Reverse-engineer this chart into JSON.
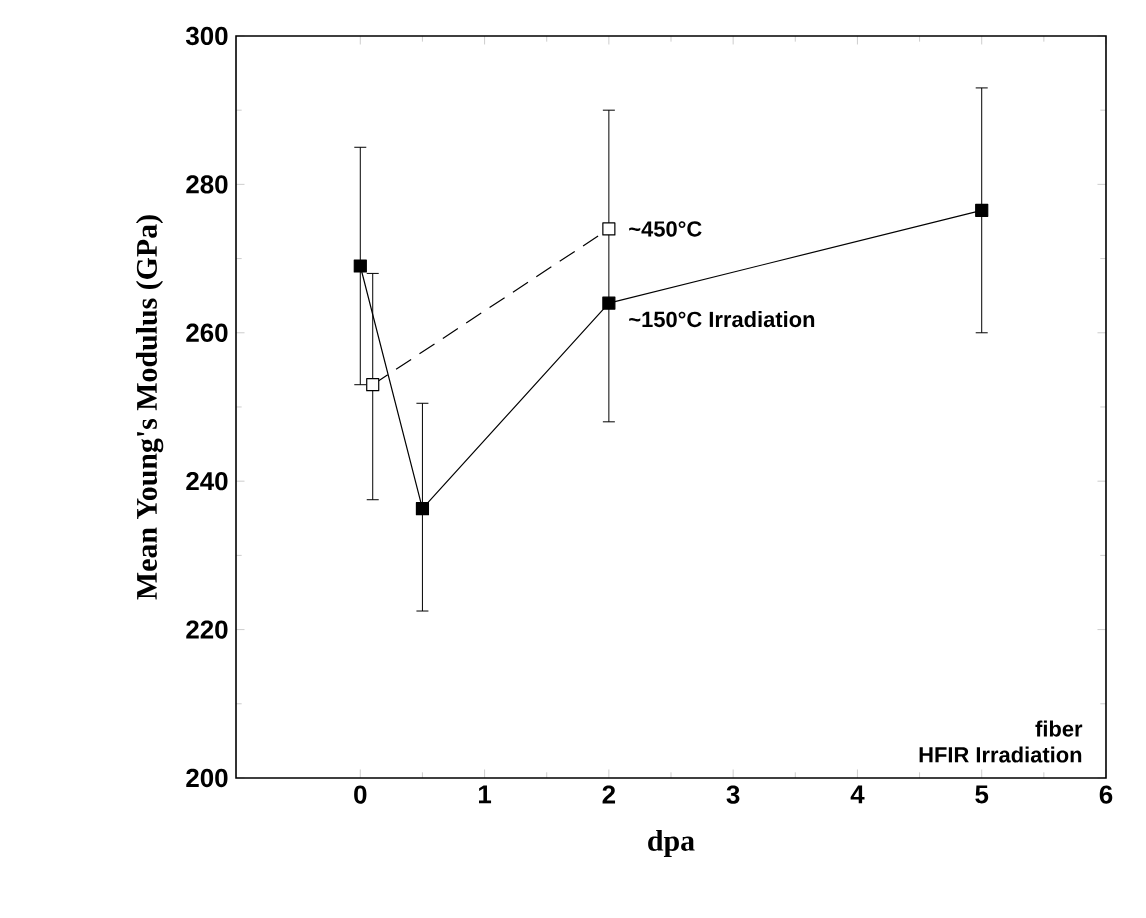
{
  "chart_data": {
    "type": "line",
    "xlabel": "dpa",
    "ylabel": "Mean Young's Modulus (GPa)",
    "xlim": [
      -1,
      6
    ],
    "xticks": [
      0,
      1,
      2,
      3,
      4,
      5,
      6
    ],
    "ylim": [
      200,
      300
    ],
    "yticks": [
      200,
      220,
      240,
      260,
      280,
      300
    ],
    "marker": "square",
    "grid": false,
    "series": [
      {
        "color": "#000000",
        "line_style": "solid",
        "x": [
          0,
          0.5,
          2,
          5
        ],
        "values": [
          269,
          236.3,
          264,
          276.5
        ],
        "errors": [
          [
            253,
            285
          ],
          [
            222.5,
            250.5
          ],
          [
            248,
            290
          ],
          [
            260,
            293
          ]
        ]
      },
      {
        "color": "#000000",
        "line_style": "dashed",
        "x": [
          0.1,
          2
        ],
        "values": [
          253,
          274
        ],
        "errors": [
          [
            237.5,
            268
          ],
          null
        ]
      }
    ],
    "annotations": [
      {
        "text": "~450°C",
        "x": 2,
        "y": 274
      },
      {
        "text": "~150°C   Irradiation",
        "x": 2,
        "y": 264
      },
      "fiber",
      "HFIR   Irradiation"
    ]
  }
}
